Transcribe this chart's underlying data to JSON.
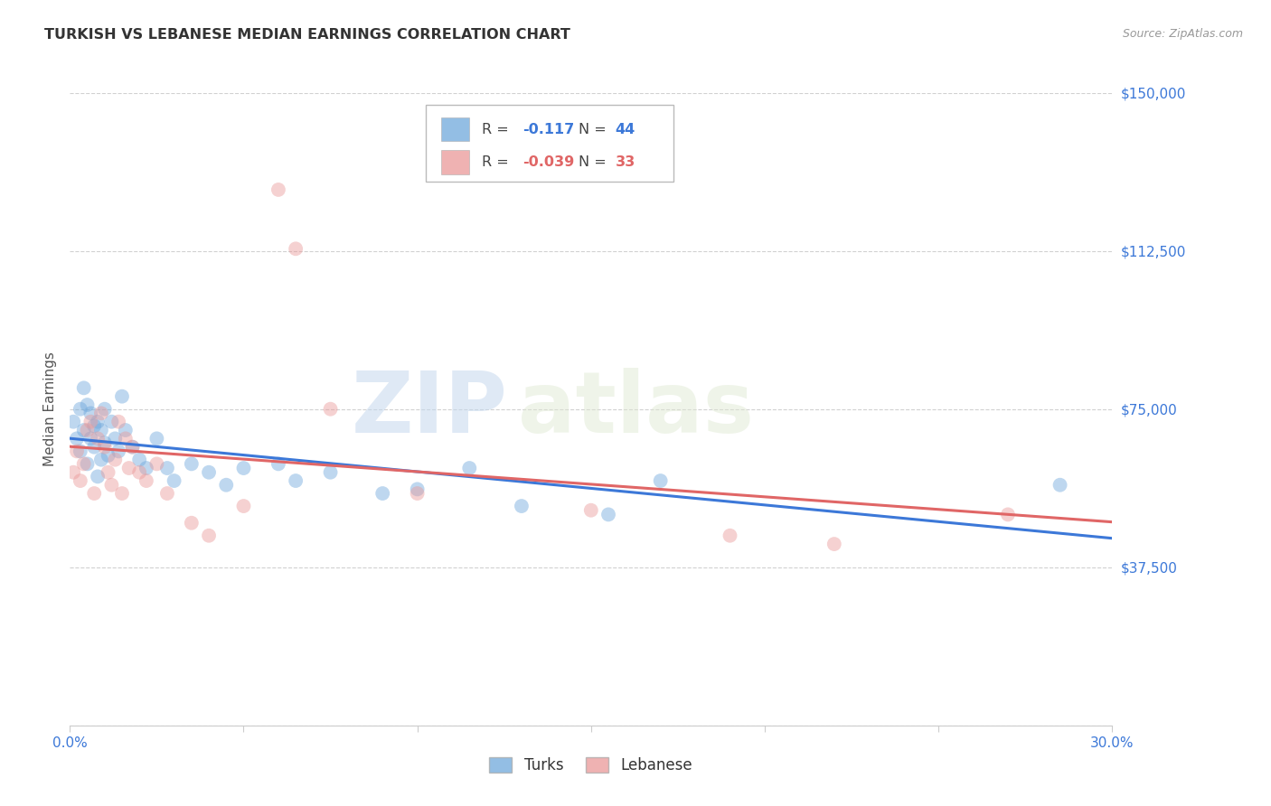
{
  "title": "TURKISH VS LEBANESE MEDIAN EARNINGS CORRELATION CHART",
  "source": "Source: ZipAtlas.com",
  "ylabel": "Median Earnings",
  "xlim": [
    0.0,
    0.3
  ],
  "ylim": [
    0,
    150000
  ],
  "yticks": [
    0,
    37500,
    75000,
    112500,
    150000
  ],
  "ytick_labels": [
    "",
    "$37,500",
    "$75,000",
    "$112,500",
    "$150,000"
  ],
  "xticks": [
    0.0,
    0.05,
    0.1,
    0.15,
    0.2,
    0.25,
    0.3
  ],
  "grid_color": "#cccccc",
  "background_color": "#ffffff",
  "blue_color": "#6fa8dc",
  "pink_color": "#ea9999",
  "blue_line_color": "#3c78d8",
  "pink_line_color": "#e06666",
  "watermark_zip": "ZIP",
  "watermark_atlas": "atlas",
  "legend_R_blue": "-0.117",
  "legend_N_blue": "44",
  "legend_R_pink": "-0.039",
  "legend_N_pink": "33",
  "turks_x": [
    0.001,
    0.002,
    0.003,
    0.003,
    0.004,
    0.004,
    0.005,
    0.005,
    0.006,
    0.006,
    0.007,
    0.007,
    0.008,
    0.008,
    0.009,
    0.009,
    0.01,
    0.01,
    0.011,
    0.012,
    0.013,
    0.014,
    0.015,
    0.016,
    0.018,
    0.02,
    0.022,
    0.025,
    0.028,
    0.03,
    0.035,
    0.04,
    0.045,
    0.05,
    0.06,
    0.065,
    0.075,
    0.09,
    0.1,
    0.115,
    0.13,
    0.155,
    0.17,
    0.285
  ],
  "turks_y": [
    72000,
    68000,
    75000,
    65000,
    80000,
    70000,
    76000,
    62000,
    74000,
    68000,
    71000,
    66000,
    72000,
    59000,
    70000,
    63000,
    75000,
    67000,
    64000,
    72000,
    68000,
    65000,
    78000,
    70000,
    66000,
    63000,
    61000,
    68000,
    61000,
    58000,
    62000,
    60000,
    57000,
    61000,
    62000,
    58000,
    60000,
    55000,
    56000,
    61000,
    52000,
    50000,
    58000,
    57000
  ],
  "lebanese_x": [
    0.001,
    0.002,
    0.003,
    0.004,
    0.005,
    0.006,
    0.007,
    0.008,
    0.009,
    0.01,
    0.011,
    0.012,
    0.013,
    0.014,
    0.015,
    0.016,
    0.017,
    0.018,
    0.02,
    0.022,
    0.025,
    0.028,
    0.035,
    0.04,
    0.05,
    0.06,
    0.065,
    0.075,
    0.1,
    0.15,
    0.19,
    0.22,
    0.27
  ],
  "lebanese_y": [
    60000,
    65000,
    58000,
    62000,
    70000,
    72000,
    55000,
    68000,
    74000,
    66000,
    60000,
    57000,
    63000,
    72000,
    55000,
    68000,
    61000,
    66000,
    60000,
    58000,
    62000,
    55000,
    48000,
    45000,
    52000,
    127000,
    113000,
    75000,
    55000,
    51000,
    45000,
    43000,
    50000
  ],
  "marker_size": 130,
  "marker_alpha": 0.45,
  "line_width": 2.2
}
